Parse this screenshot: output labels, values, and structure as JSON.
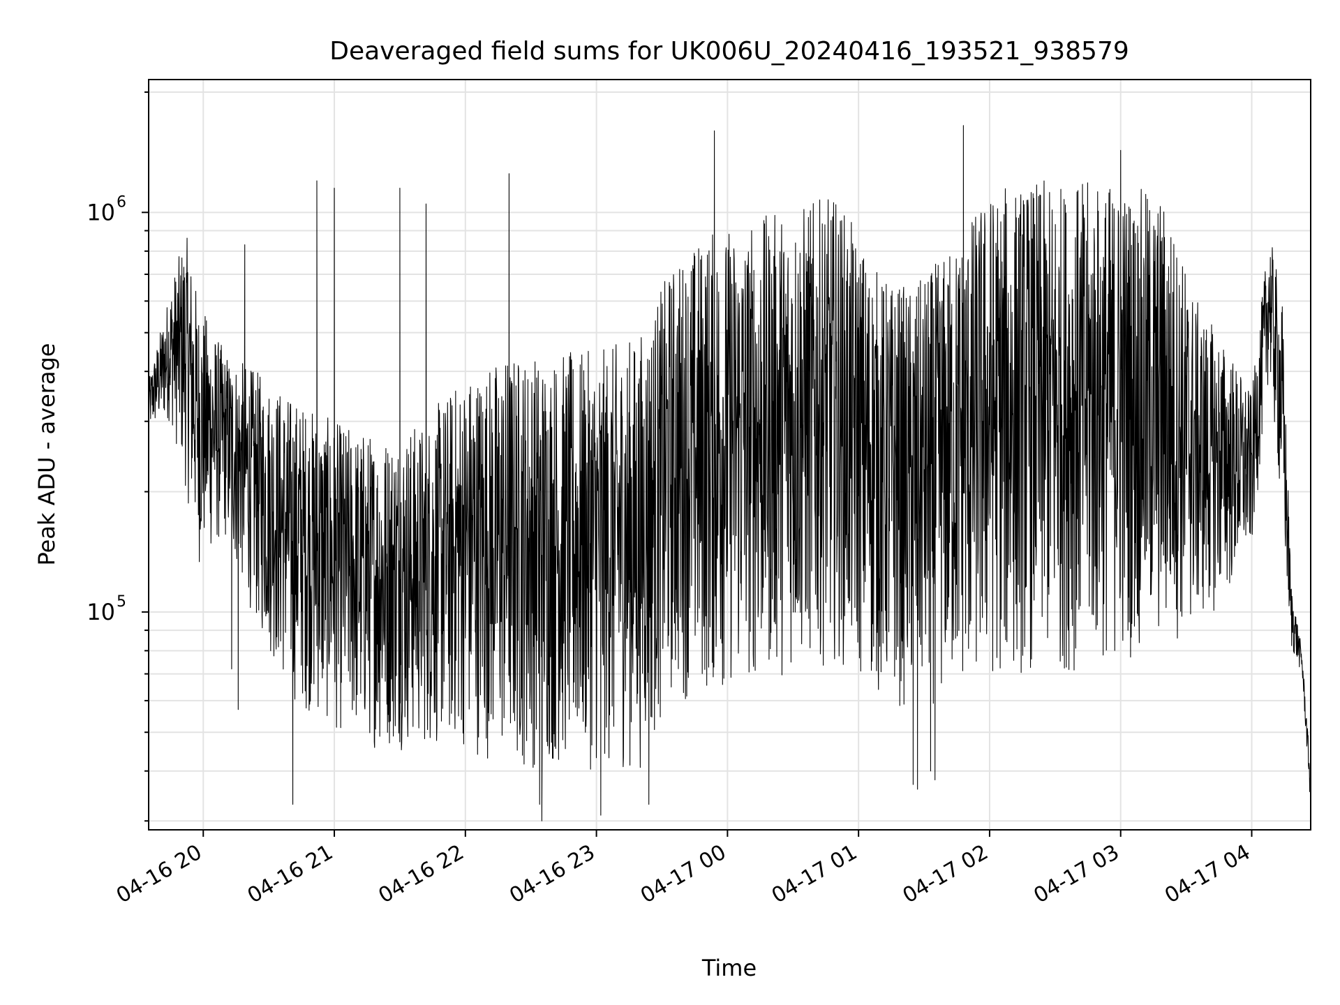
{
  "chart_data": {
    "type": "line",
    "title": "Deaveraged field sums for UK006U_20240416_193521_938579",
    "xlabel": "Time",
    "ylabel": "Peak ADU - average",
    "yscale": "log",
    "ylim": [
      28500,
      2150000
    ],
    "xlim": [
      "2024-04-16 19:35",
      "2024-04-17 04:27"
    ],
    "grid": true,
    "x_ticks": [
      {
        "time": "2024-04-16 20:00",
        "label": "04-16 20"
      },
      {
        "time": "2024-04-16 21:00",
        "label": "04-16 21"
      },
      {
        "time": "2024-04-16 22:00",
        "label": "04-16 22"
      },
      {
        "time": "2024-04-16 23:00",
        "label": "04-16 23"
      },
      {
        "time": "2024-04-17 00:00",
        "label": "04-17 00"
      },
      {
        "time": "2024-04-17 01:00",
        "label": "04-17 01"
      },
      {
        "time": "2024-04-17 02:00",
        "label": "04-17 02"
      },
      {
        "time": "2024-04-17 03:00",
        "label": "04-17 03"
      },
      {
        "time": "2024-04-17 04:00",
        "label": "04-17 04"
      }
    ],
    "y_major_ticks": [
      {
        "value": 100000,
        "base": "10",
        "exp": "5"
      },
      {
        "value": 1000000,
        "base": "10",
        "exp": "6"
      }
    ],
    "y_minor_ticks": [
      30000,
      40000,
      50000,
      60000,
      70000,
      80000,
      90000,
      200000,
      300000,
      400000,
      500000,
      600000,
      700000,
      800000,
      900000,
      2000000
    ],
    "series": [
      {
        "color": "#000000",
        "envelope": [
          {
            "time": "2024-04-16 19:35",
            "low": 280000,
            "high": 380000
          },
          {
            "time": "2024-04-16 19:45",
            "low": 300000,
            "high": 650000
          },
          {
            "time": "2024-04-16 19:52",
            "low": 200000,
            "high": 900000
          },
          {
            "time": "2024-04-16 19:58",
            "low": 130000,
            "high": 600000
          },
          {
            "time": "2024-04-16 20:10",
            "low": 150000,
            "high": 450000
          },
          {
            "time": "2024-04-16 20:25",
            "low": 90000,
            "high": 400000
          },
          {
            "time": "2024-04-16 20:40",
            "low": 60000,
            "high": 350000
          },
          {
            "time": "2024-04-16 21:00",
            "low": 50000,
            "high": 300000
          },
          {
            "time": "2024-04-16 21:20",
            "low": 45000,
            "high": 280000
          },
          {
            "time": "2024-04-16 21:40",
            "low": 45000,
            "high": 300000
          },
          {
            "time": "2024-04-16 22:00",
            "low": 45000,
            "high": 400000
          },
          {
            "time": "2024-04-16 22:20",
            "low": 40000,
            "high": 450000
          },
          {
            "time": "2024-04-16 22:40",
            "low": 40000,
            "high": 450000
          },
          {
            "time": "2024-04-16 23:00",
            "low": 40000,
            "high": 450000
          },
          {
            "time": "2024-04-16 23:20",
            "low": 40000,
            "high": 500000
          },
          {
            "time": "2024-04-16 23:35",
            "low": 60000,
            "high": 750000
          },
          {
            "time": "2024-04-16 23:50",
            "low": 60000,
            "high": 900000
          },
          {
            "time": "2024-04-17 00:10",
            "low": 65000,
            "high": 950000
          },
          {
            "time": "2024-04-17 00:30",
            "low": 70000,
            "high": 1050000
          },
          {
            "time": "2024-04-17 00:50",
            "low": 75000,
            "high": 1100000
          },
          {
            "time": "2024-04-17 01:10",
            "low": 60000,
            "high": 700000
          },
          {
            "time": "2024-04-17 01:25",
            "low": 55000,
            "high": 650000
          },
          {
            "time": "2024-04-17 01:40",
            "low": 60000,
            "high": 800000
          },
          {
            "time": "2024-04-17 02:00",
            "low": 65000,
            "high": 1150000
          },
          {
            "time": "2024-04-17 02:20",
            "low": 70000,
            "high": 1200000
          },
          {
            "time": "2024-04-17 02:40",
            "low": 70000,
            "high": 1200000
          },
          {
            "time": "2024-04-17 03:00",
            "low": 75000,
            "high": 1200000
          },
          {
            "time": "2024-04-17 03:20",
            "low": 80000,
            "high": 1100000
          },
          {
            "time": "2024-04-17 03:35",
            "low": 90000,
            "high": 600000
          },
          {
            "time": "2024-04-17 03:50",
            "low": 110000,
            "high": 450000
          },
          {
            "time": "2024-04-17 04:00",
            "low": 140000,
            "high": 350000
          },
          {
            "time": "2024-04-17 04:08",
            "low": 400000,
            "high": 900000
          },
          {
            "time": "2024-04-17 04:14",
            "low": 160000,
            "high": 600000
          },
          {
            "time": "2024-04-17 04:18",
            "low": 80000,
            "high": 120000
          },
          {
            "time": "2024-04-17 04:23",
            "low": 70000,
            "high": 80000
          },
          {
            "time": "2024-04-17 04:27",
            "low": 32000,
            "high": 40000
          }
        ],
        "spikes": [
          {
            "time": "2024-04-16 20:19",
            "value": 830000
          },
          {
            "time": "2024-04-16 20:52",
            "value": 1200000
          },
          {
            "time": "2024-04-16 21:00",
            "value": 1150000
          },
          {
            "time": "2024-04-16 21:30",
            "value": 1150000
          },
          {
            "time": "2024-04-16 21:42",
            "value": 1050000
          },
          {
            "time": "2024-04-16 22:20",
            "value": 1250000
          },
          {
            "time": "2024-04-16 23:54",
            "value": 1600000
          },
          {
            "time": "2024-04-17 01:48",
            "value": 1650000
          },
          {
            "time": "2024-04-17 03:00",
            "value": 1430000
          }
        ],
        "dips": [
          {
            "time": "2024-04-16 20:13",
            "value": 72000
          },
          {
            "time": "2024-04-16 20:16",
            "value": 57000
          },
          {
            "time": "2024-04-16 20:41",
            "value": 33000
          },
          {
            "time": "2024-04-16 22:34",
            "value": 33000
          },
          {
            "time": "2024-04-16 22:35",
            "value": 30000
          },
          {
            "time": "2024-04-16 23:02",
            "value": 31000
          },
          {
            "time": "2024-04-16 23:24",
            "value": 33000
          },
          {
            "time": "2024-04-17 01:25",
            "value": 37000
          },
          {
            "time": "2024-04-17 01:27",
            "value": 36000
          },
          {
            "time": "2024-04-17 01:33",
            "value": 40000
          },
          {
            "time": "2024-04-17 01:35",
            "value": 38000
          }
        ]
      }
    ]
  }
}
